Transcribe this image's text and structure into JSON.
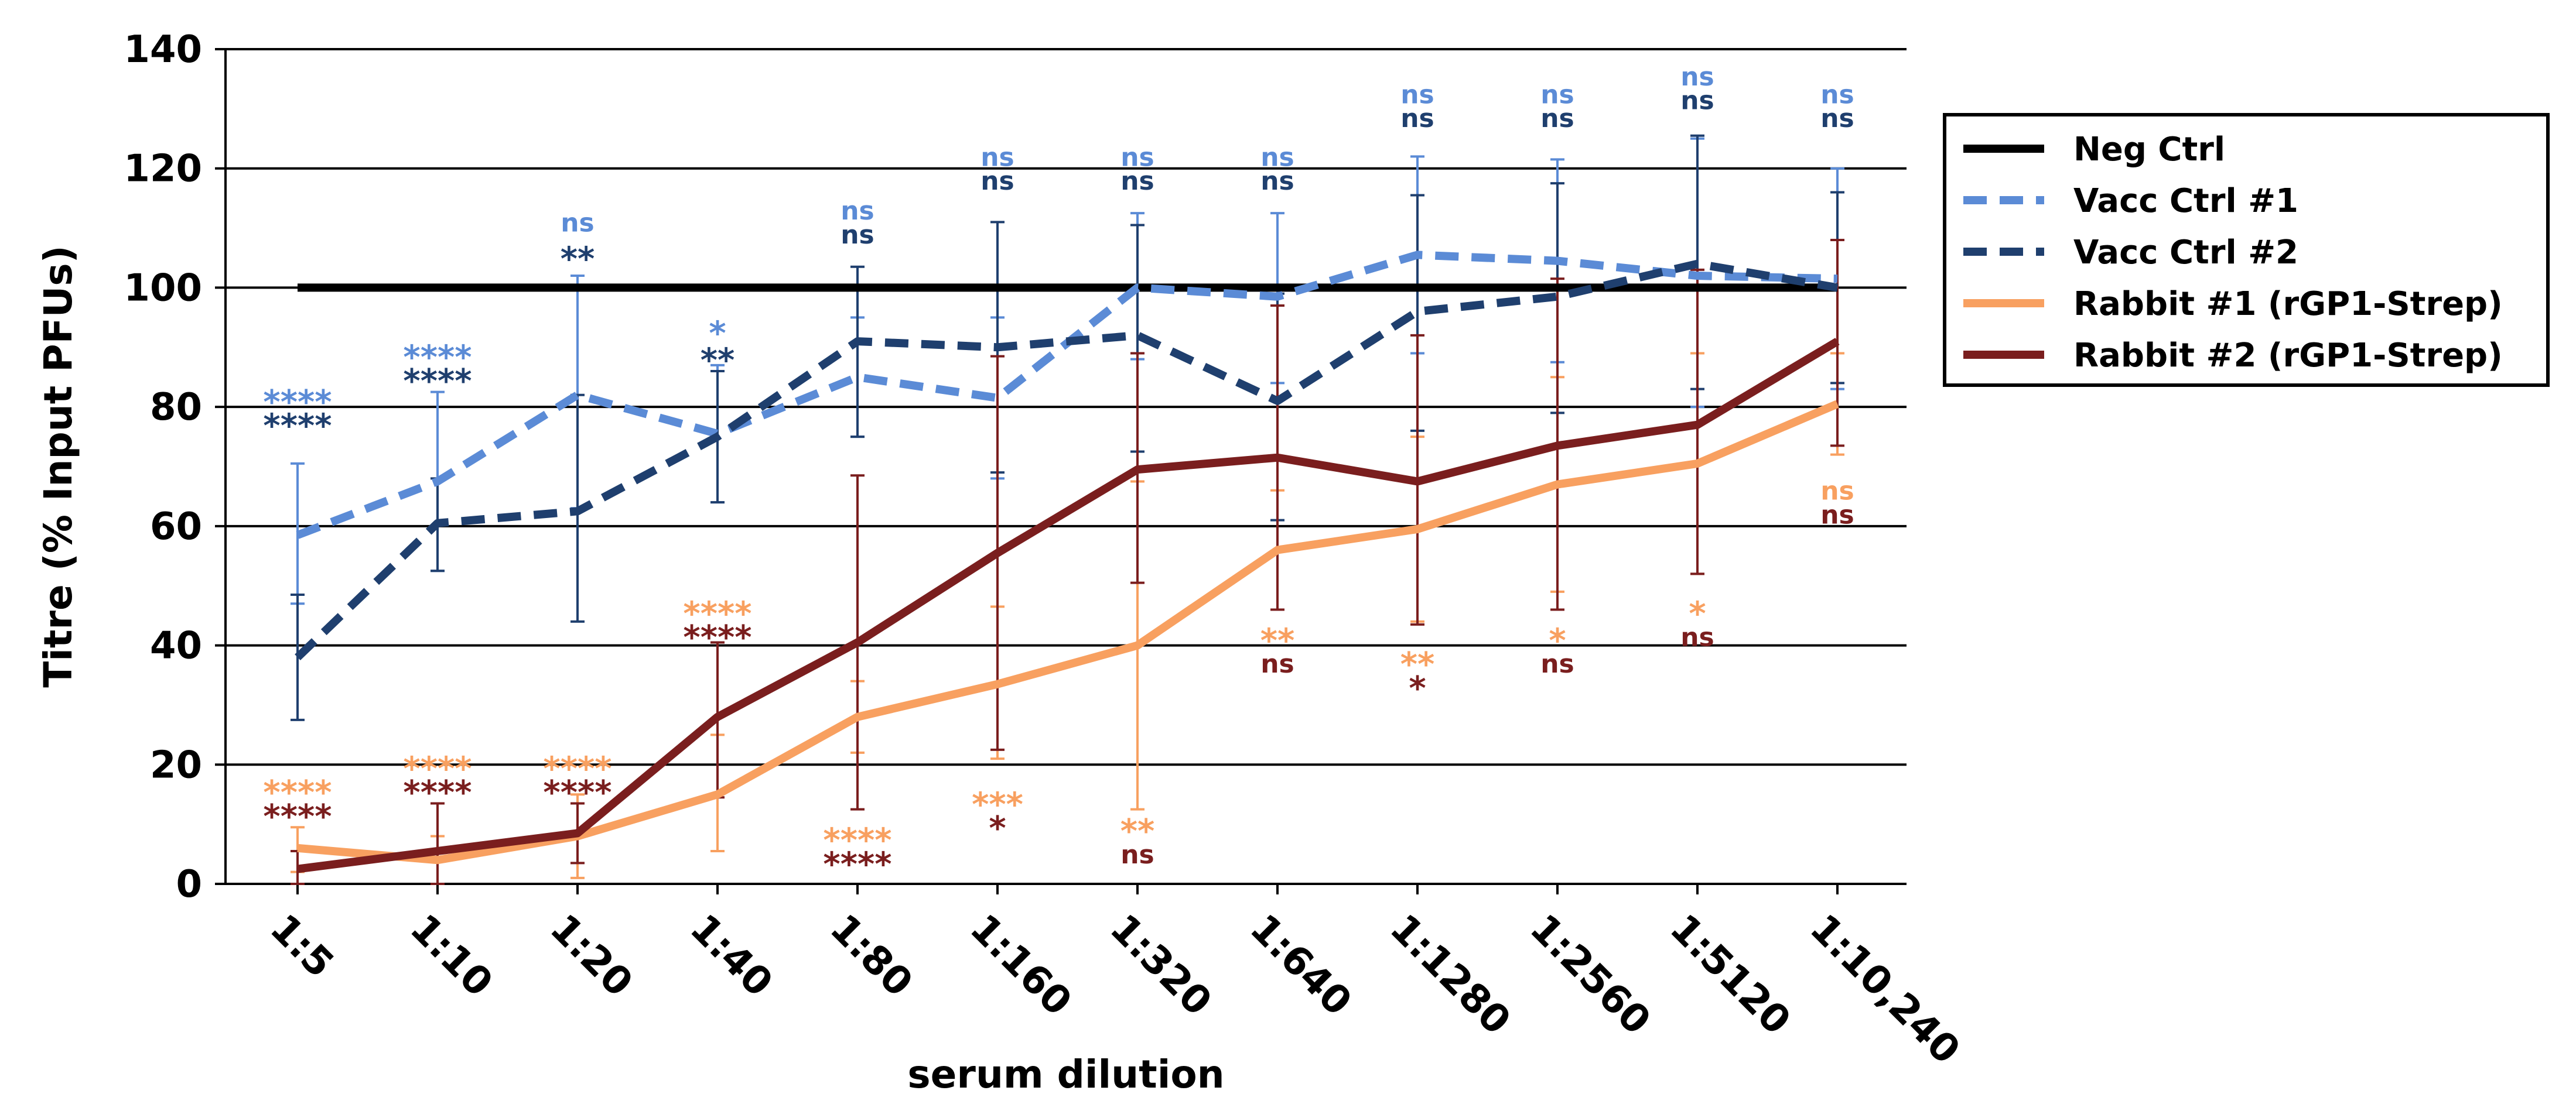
{
  "chart_data": {
    "type": "line",
    "title": "",
    "xlabel": "serum dilution",
    "ylabel": "Titre (% Input PFUs)",
    "ylim": [
      0,
      140
    ],
    "yticks": [
      0,
      20,
      40,
      60,
      80,
      100,
      120,
      140
    ],
    "yticklabels": [
      "0",
      "20",
      "40",
      "60",
      "80",
      "100",
      "120",
      "140"
    ],
    "grid": true,
    "legend_position": "right",
    "categories": [
      "1:5",
      "1:10",
      "1:20",
      "1:40",
      "1:80",
      "1:160",
      "1:320",
      "1:640",
      "1:1280",
      "1:2560",
      "1:5120",
      "1:10,240"
    ],
    "series": [
      {
        "name": "Neg Ctrl",
        "color": "#000000",
        "dash": "solid",
        "values": [
          100,
          100,
          100,
          100,
          100,
          100,
          100,
          100,
          100,
          100,
          100,
          100
        ]
      },
      {
        "name": "Vacc Ctrl #1",
        "color": "#5b8bd6",
        "dash": "dashed",
        "values": [
          58.5,
          67.5,
          82,
          75.5,
          85,
          81.5,
          100,
          98.5,
          105.5,
          104.5,
          102,
          101.5
        ],
        "err_low": [
          47,
          52.5,
          63,
          64,
          75,
          68,
          88,
          84,
          89,
          87.5,
          80,
          83
        ],
        "err_high": [
          70.5,
          82.5,
          102,
          87,
          95,
          95,
          112.5,
          112.5,
          122,
          121.5,
          125,
          120
        ],
        "significance": [
          "****",
          "****",
          "ns",
          "*",
          "ns",
          "ns",
          "ns",
          "ns",
          "ns",
          "ns",
          "ns",
          "ns"
        ]
      },
      {
        "name": "Vacc Ctrl #2",
        "color": "#1f3f6e",
        "dash": "dashed",
        "values": [
          38,
          60.5,
          62.5,
          75,
          91,
          90,
          92,
          81,
          96,
          98.5,
          104,
          100
        ],
        "err_low": [
          27.5,
          52.5,
          44,
          64,
          75,
          69,
          72.5,
          61,
          76,
          79,
          83,
          84
        ],
        "err_high": [
          48.5,
          68,
          82,
          86,
          103.5,
          111,
          110.5,
          99,
          115.5,
          117.5,
          125.5,
          116
        ],
        "significance": [
          "****",
          "****",
          "**",
          "**",
          "ns",
          "ns",
          "ns",
          "ns",
          "ns",
          "ns",
          "ns",
          "ns"
        ]
      },
      {
        "name": "Rabbit #1 (rGP1-Strep)",
        "color": "#f8a060",
        "dash": "solid",
        "values": [
          6,
          4,
          8,
          15,
          28,
          33.5,
          40,
          56,
          59.5,
          67,
          70.5,
          80.5
        ],
        "err_low": [
          2,
          0,
          1,
          5.5,
          22,
          21,
          12.5,
          46,
          44,
          49,
          52,
          72
        ],
        "err_high": [
          9.5,
          8,
          15,
          25,
          34,
          46.5,
          67.5,
          66,
          75,
          85,
          89,
          89
        ],
        "significance": [
          "****",
          "****",
          "****",
          "****",
          "****",
          "***",
          "**",
          "**",
          "**",
          "*",
          "*",
          "ns"
        ]
      },
      {
        "name": "Rabbit #2 (rGP1-Strep)",
        "color": "#7a1e1e",
        "dash": "solid",
        "values": [
          2.5,
          5.5,
          8.5,
          28,
          40.5,
          55.5,
          69.5,
          71.5,
          67.5,
          73.5,
          77,
          91
        ],
        "err_low": [
          0,
          0,
          3.5,
          14.5,
          12.5,
          22.5,
          50.5,
          46,
          43.5,
          46,
          52,
          73.5
        ],
        "err_high": [
          5.5,
          13.5,
          13.5,
          40.5,
          68.5,
          88.5,
          89,
          97,
          92,
          101.5,
          103,
          108
        ],
        "significance": [
          "****",
          "****",
          "****",
          "****",
          "****",
          "*",
          "ns",
          "ns",
          "*",
          "ns",
          "ns",
          "ns"
        ]
      }
    ],
    "annotations": [
      {
        "category": "1:5",
        "label": "****",
        "color": "#5b8bd6",
        "y": 81.5
      },
      {
        "category": "1:5",
        "label": "****",
        "color": "#1f3f6e",
        "y": 77.5
      },
      {
        "category": "1:10",
        "label": "****",
        "color": "#5b8bd6",
        "y": 89
      },
      {
        "category": "1:10",
        "label": "****",
        "color": "#1f3f6e",
        "y": 85
      },
      {
        "category": "1:20",
        "label": "ns",
        "color": "#5b8bd6",
        "y": 111
      },
      {
        "category": "1:20",
        "label": "**",
        "color": "#1f3f6e",
        "y": 105.5
      },
      {
        "category": "1:40",
        "label": "*",
        "color": "#5b8bd6",
        "y": 93
      },
      {
        "category": "1:40",
        "label": "**",
        "color": "#1f3f6e",
        "y": 88.5
      },
      {
        "category": "1:80",
        "label": "ns",
        "color": "#5b8bd6",
        "y": 113
      },
      {
        "category": "1:80",
        "label": "ns",
        "color": "#1f3f6e",
        "y": 109
      },
      {
        "category": "1:160",
        "label": "ns",
        "color": "#5b8bd6",
        "y": 122
      },
      {
        "category": "1:160",
        "label": "ns",
        "color": "#1f3f6e",
        "y": 118
      },
      {
        "category": "1:320",
        "label": "ns",
        "color": "#5b8bd6",
        "y": 122
      },
      {
        "category": "1:320",
        "label": "ns",
        "color": "#1f3f6e",
        "y": 118
      },
      {
        "category": "1:640",
        "label": "ns",
        "color": "#5b8bd6",
        "y": 122
      },
      {
        "category": "1:640",
        "label": "ns",
        "color": "#1f3f6e",
        "y": 118
      },
      {
        "category": "1:1280",
        "label": "ns",
        "color": "#5b8bd6",
        "y": 132.5
      },
      {
        "category": "1:1280",
        "label": "ns",
        "color": "#1f3f6e",
        "y": 128.5
      },
      {
        "category": "1:2560",
        "label": "ns",
        "color": "#5b8bd6",
        "y": 132.5
      },
      {
        "category": "1:2560",
        "label": "ns",
        "color": "#1f3f6e",
        "y": 128.5
      },
      {
        "category": "1:5120",
        "label": "ns",
        "color": "#5b8bd6",
        "y": 135.5
      },
      {
        "category": "1:5120",
        "label": "ns",
        "color": "#1f3f6e",
        "y": 131.5
      },
      {
        "category": "1:10,240",
        "label": "ns",
        "color": "#5b8bd6",
        "y": 132.5
      },
      {
        "category": "1:10,240",
        "label": "ns",
        "color": "#1f3f6e",
        "y": 128.5
      },
      {
        "category": "1:5",
        "label": "****",
        "color": "#f8a060",
        "y": 16
      },
      {
        "category": "1:5",
        "label": "****",
        "color": "#7a1e1e",
        "y": 12
      },
      {
        "category": "1:10",
        "label": "****",
        "color": "#f8a060",
        "y": 20
      },
      {
        "category": "1:10",
        "label": "****",
        "color": "#7a1e1e",
        "y": 16
      },
      {
        "category": "1:20",
        "label": "****",
        "color": "#f8a060",
        "y": 20
      },
      {
        "category": "1:20",
        "label": "****",
        "color": "#7a1e1e",
        "y": 16
      },
      {
        "category": "1:40",
        "label": "****",
        "color": "#f8a060",
        "y": 46
      },
      {
        "category": "1:40",
        "label": "****",
        "color": "#7a1e1e",
        "y": 42
      },
      {
        "category": "1:80",
        "label": "****",
        "color": "#f8a060",
        "y": 8
      },
      {
        "category": "1:80",
        "label": "****",
        "color": "#7a1e1e",
        "y": 4
      },
      {
        "category": "1:160",
        "label": "***",
        "color": "#f8a060",
        "y": 14
      },
      {
        "category": "1:160",
        "label": "*",
        "color": "#7a1e1e",
        "y": 10
      },
      {
        "category": "1:320",
        "label": "**",
        "color": "#f8a060",
        "y": 9.5
      },
      {
        "category": "1:320",
        "label": "ns",
        "color": "#7a1e1e",
        "y": 5
      },
      {
        "category": "1:640",
        "label": "**",
        "color": "#f8a060",
        "y": 41.5
      },
      {
        "category": "1:640",
        "label": "ns",
        "color": "#7a1e1e",
        "y": 37
      },
      {
        "category": "1:1280",
        "label": "**",
        "color": "#f8a060",
        "y": 37.5
      },
      {
        "category": "1:1280",
        "label": "*",
        "color": "#7a1e1e",
        "y": 33.5
      },
      {
        "category": "1:2560",
        "label": "*",
        "color": "#f8a060",
        "y": 41.5
      },
      {
        "category": "1:2560",
        "label": "ns",
        "color": "#7a1e1e",
        "y": 37
      },
      {
        "category": "1:5120",
        "label": "*",
        "color": "#f8a060",
        "y": 46
      },
      {
        "category": "1:5120",
        "label": "ns",
        "color": "#7a1e1e",
        "y": 41.5
      },
      {
        "category": "1:10,240",
        "label": "ns",
        "color": "#f8a060",
        "y": 66
      },
      {
        "category": "1:10,240",
        "label": "ns",
        "color": "#7a1e1e",
        "y": 62
      }
    ]
  }
}
